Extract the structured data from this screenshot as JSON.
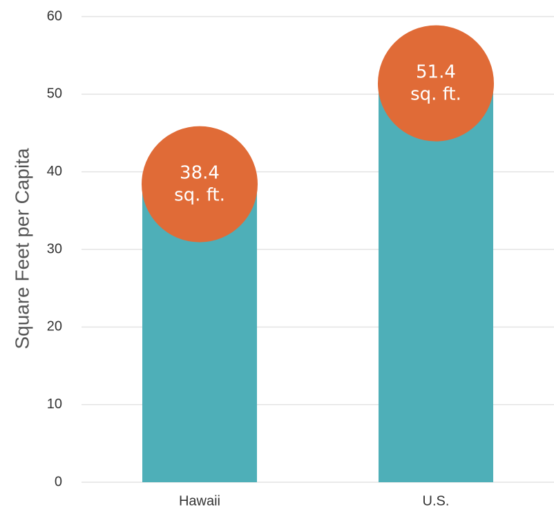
{
  "chart_data": {
    "type": "bar",
    "y_label": "Square Feet per Capita",
    "categories": [
      "Hawaii",
      "U.S."
    ],
    "values": [
      38.4,
      51.4
    ],
    "value_labels": [
      "38.4\nsq. ft.",
      "51.4\nsq. ft."
    ],
    "color": "#4eafb8",
    "label_color": "#e06b37",
    "ylim": [
      0,
      60
    ],
    "yticks": [
      0,
      10,
      20,
      30,
      40,
      50,
      60
    ],
    "grid": true
  }
}
